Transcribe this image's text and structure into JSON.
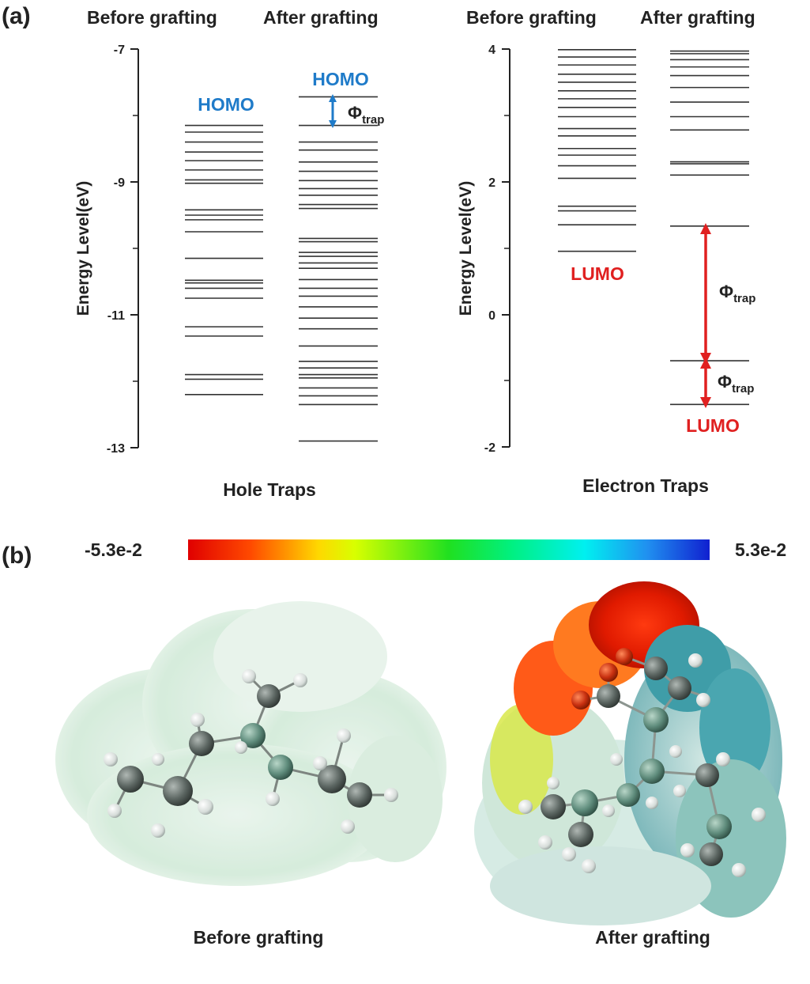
{
  "panel_a": {
    "label": "(a)",
    "hole": {
      "col_before": "Before grafting",
      "col_after": "After grafting",
      "axis_label": "Energy Level(eV)",
      "ticks": [
        "-7",
        "-9",
        "-11",
        "-13"
      ],
      "homo_before": "HOMO",
      "homo_after": "HOMO",
      "phi": "Φ",
      "phi_sub": "trap",
      "caption": "Hole Traps"
    },
    "electron": {
      "col_before": "Before grafting",
      "col_after": "After grafting",
      "axis_label": "Energy Level(eV)",
      "ticks": [
        "4",
        "2",
        "0",
        "-2"
      ],
      "lumo_before": "LUMO",
      "lumo_after": "LUMO",
      "phi": "Φ",
      "phi_sub": "trap",
      "caption": "Electron Traps"
    }
  },
  "panel_b": {
    "label": "(b)",
    "scale_min": "-5.3e-2",
    "scale_max": "5.3e-2",
    "caption_before": "Before grafting",
    "caption_after": "After grafting"
  },
  "chart_data": [
    {
      "type": "energy-level diagram",
      "title": "Hole Traps",
      "ylabel": "Energy Level(eV)",
      "ylim": [
        -13,
        -7
      ],
      "series": [
        {
          "name": "Before grafting",
          "values": [
            -8.15,
            -8.25,
            -8.4,
            -8.55,
            -8.68,
            -8.82,
            -8.97,
            -9.02,
            -9.42,
            -9.5,
            -9.57,
            -9.75,
            -10.15,
            -10.48,
            -10.52,
            -10.6,
            -10.75,
            -11.18,
            -11.32,
            -11.9,
            -11.97,
            -12.2
          ]
        },
        {
          "name": "After grafting",
          "values": [
            -7.72,
            -8.15,
            -8.4,
            -8.52,
            -8.7,
            -8.84,
            -8.98,
            -9.1,
            -9.2,
            -9.34,
            -9.4,
            -9.85,
            -9.9,
            -10.06,
            -10.12,
            -10.22,
            -10.3,
            -10.47,
            -10.6,
            -10.72,
            -10.88,
            -11.05,
            -11.21,
            -11.47,
            -11.7,
            -11.8,
            -11.9,
            -11.95,
            -12.1,
            -12.22,
            -12.35,
            -12.9
          ]
        }
      ]
    },
    {
      "type": "energy-level diagram",
      "title": "Electron Traps",
      "ylabel": "Energy Level(eV)",
      "ylim": [
        -2,
        4
      ],
      "series": [
        {
          "name": "Before grafting",
          "values": [
            0.95,
            1.35,
            1.56,
            1.63,
            2.05,
            2.24,
            2.4,
            2.5,
            2.69,
            2.8,
            2.98,
            3.12,
            3.25,
            3.37,
            3.5,
            3.62,
            3.76,
            3.88,
            3.99
          ]
        },
        {
          "name": "After grafting",
          "values": [
            -1.36,
            -0.7,
            1.33,
            2.1,
            2.27,
            2.3,
            2.78,
            2.98,
            3.2,
            3.42,
            3.6,
            3.73,
            3.84,
            3.93,
            3.97
          ]
        }
      ]
    }
  ]
}
